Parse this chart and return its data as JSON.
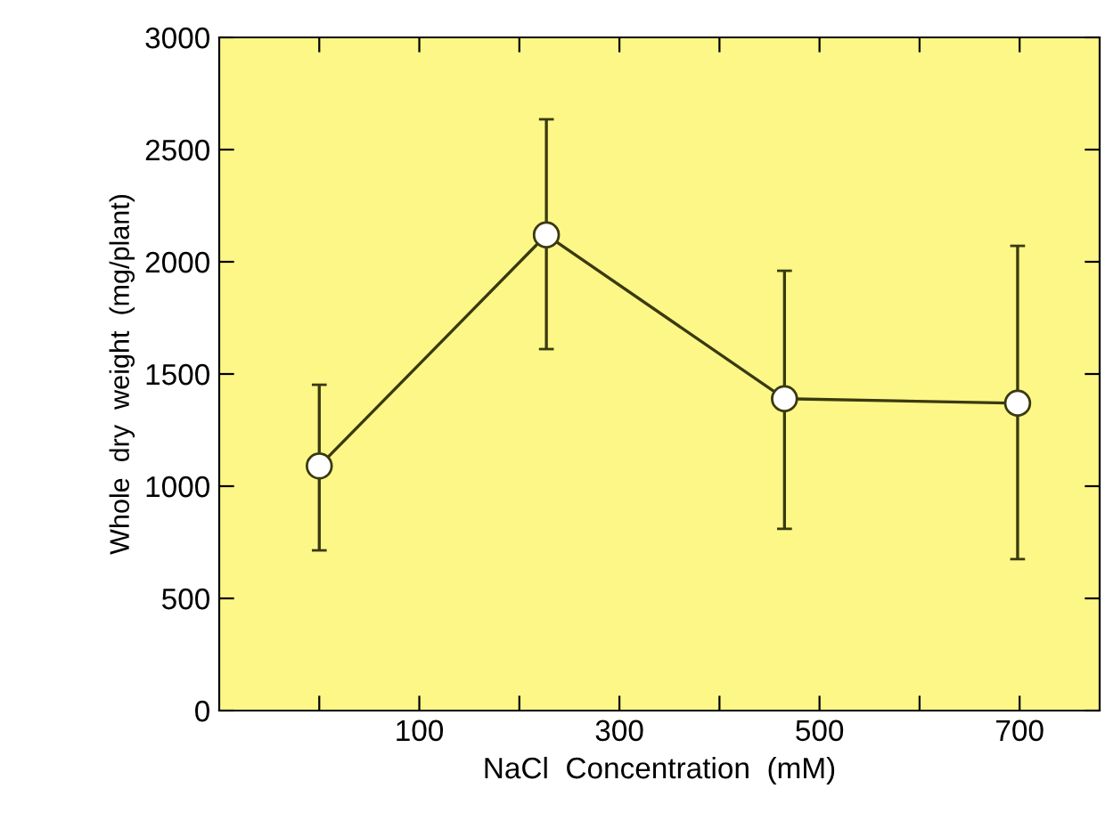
{
  "chart_data": {
    "type": "line",
    "xlabel": "NaCl  Concentration  (mM)",
    "ylabel": "Whole  dry  weight  (mg/plant)",
    "x": [
      0,
      227,
      465,
      698
    ],
    "series": [
      {
        "color": "#3a3a10",
        "values": [
          1090,
          2120,
          1390,
          1370
        ],
        "errors": [
          [
            714,
            1452
          ],
          [
            1611,
            2635
          ],
          [
            810,
            1960
          ],
          [
            675,
            2071
          ]
        ]
      }
    ],
    "xlim": [
      -100,
      780
    ],
    "xticks": [
      {
        "value": 0,
        "label": null
      },
      100,
      {
        "value": 200,
        "label": null
      },
      300,
      {
        "value": 400,
        "label": null
      },
      500,
      {
        "value": 600,
        "label": null
      },
      700
    ],
    "ylim": [
      0,
      3000
    ],
    "yticks": [
      0,
      500,
      1000,
      1500,
      2000,
      2500,
      3000
    ],
    "marker": "circle",
    "line_style": "solid",
    "grid": false,
    "legend": false
  }
}
